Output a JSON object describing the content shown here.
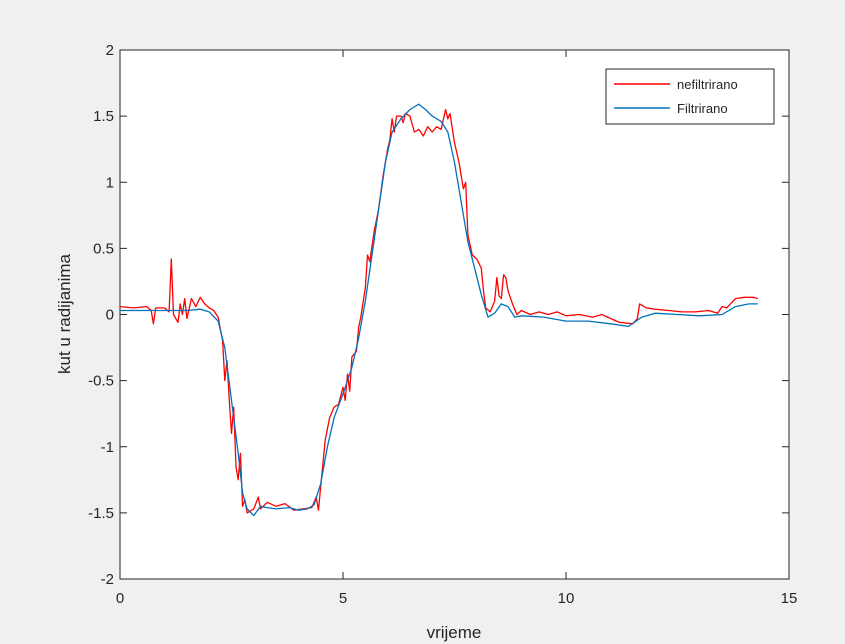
{
  "chart_data": {
    "type": "line",
    "xlabel": "vrijeme",
    "ylabel": "kut u radijanima",
    "xlim": [
      0,
      15
    ],
    "ylim": [
      -2,
      2
    ],
    "xticks": [
      0,
      5,
      10,
      15
    ],
    "xtick_labels": [
      "0",
      "5",
      "10",
      "15"
    ],
    "yticks": [
      -2,
      -1.5,
      -1,
      -0.5,
      0,
      0.5,
      1,
      1.5,
      2
    ],
    "ytick_labels": [
      "-2",
      "-1.5",
      "-1",
      "-0.5",
      "0",
      "0.5",
      "1",
      "1.5",
      "2"
    ],
    "grid": false,
    "legend_position": "top-right",
    "series": [
      {
        "name": "nefiltrirano",
        "color": "#ff0000",
        "points": [
          [
            0.0,
            0.06
          ],
          [
            0.3,
            0.05
          ],
          [
            0.6,
            0.06
          ],
          [
            0.7,
            0.03
          ],
          [
            0.75,
            -0.07
          ],
          [
            0.8,
            0.05
          ],
          [
            1.0,
            0.05
          ],
          [
            1.1,
            0.02
          ],
          [
            1.15,
            0.42
          ],
          [
            1.2,
            0.0
          ],
          [
            1.3,
            -0.06
          ],
          [
            1.35,
            0.08
          ],
          [
            1.4,
            0.0
          ],
          [
            1.45,
            0.12
          ],
          [
            1.5,
            -0.03
          ],
          [
            1.6,
            0.12
          ],
          [
            1.7,
            0.06
          ],
          [
            1.8,
            0.13
          ],
          [
            1.9,
            0.08
          ],
          [
            2.0,
            0.05
          ],
          [
            2.1,
            0.03
          ],
          [
            2.2,
            -0.02
          ],
          [
            2.3,
            -0.2
          ],
          [
            2.35,
            -0.5
          ],
          [
            2.4,
            -0.35
          ],
          [
            2.45,
            -0.65
          ],
          [
            2.5,
            -0.9
          ],
          [
            2.55,
            -0.7
          ],
          [
            2.6,
            -1.15
          ],
          [
            2.65,
            -1.25
          ],
          [
            2.7,
            -1.05
          ],
          [
            2.75,
            -1.45
          ],
          [
            2.8,
            -1.4
          ],
          [
            2.85,
            -1.5
          ],
          [
            3.0,
            -1.47
          ],
          [
            3.1,
            -1.38
          ],
          [
            3.15,
            -1.47
          ],
          [
            3.3,
            -1.42
          ],
          [
            3.5,
            -1.45
          ],
          [
            3.7,
            -1.43
          ],
          [
            3.9,
            -1.48
          ],
          [
            4.1,
            -1.47
          ],
          [
            4.3,
            -1.46
          ],
          [
            4.4,
            -1.38
          ],
          [
            4.45,
            -1.48
          ],
          [
            4.5,
            -1.3
          ],
          [
            4.6,
            -0.95
          ],
          [
            4.7,
            -0.78
          ],
          [
            4.8,
            -0.7
          ],
          [
            4.9,
            -0.68
          ],
          [
            5.0,
            -0.55
          ],
          [
            5.05,
            -0.65
          ],
          [
            5.1,
            -0.45
          ],
          [
            5.15,
            -0.58
          ],
          [
            5.2,
            -0.32
          ],
          [
            5.3,
            -0.28
          ],
          [
            5.35,
            -0.1
          ],
          [
            5.4,
            -0.02
          ],
          [
            5.5,
            0.2
          ],
          [
            5.55,
            0.45
          ],
          [
            5.6,
            0.4
          ],
          [
            5.7,
            0.63
          ],
          [
            5.8,
            0.8
          ],
          [
            5.9,
            1.05
          ],
          [
            6.0,
            1.25
          ],
          [
            6.05,
            1.32
          ],
          [
            6.1,
            1.48
          ],
          [
            6.15,
            1.38
          ],
          [
            6.2,
            1.5
          ],
          [
            6.3,
            1.5
          ],
          [
            6.35,
            1.45
          ],
          [
            6.4,
            1.52
          ],
          [
            6.5,
            1.5
          ],
          [
            6.6,
            1.38
          ],
          [
            6.7,
            1.4
          ],
          [
            6.8,
            1.35
          ],
          [
            6.9,
            1.42
          ],
          [
            7.0,
            1.38
          ],
          [
            7.1,
            1.42
          ],
          [
            7.2,
            1.4
          ],
          [
            7.3,
            1.55
          ],
          [
            7.35,
            1.48
          ],
          [
            7.4,
            1.52
          ],
          [
            7.5,
            1.3
          ],
          [
            7.6,
            1.15
          ],
          [
            7.7,
            0.95
          ],
          [
            7.75,
            1.0
          ],
          [
            7.8,
            0.6
          ],
          [
            7.9,
            0.45
          ],
          [
            8.0,
            0.42
          ],
          [
            8.1,
            0.35
          ],
          [
            8.15,
            0.18
          ],
          [
            8.2,
            0.05
          ],
          [
            8.3,
            0.02
          ],
          [
            8.4,
            0.1
          ],
          [
            8.45,
            0.28
          ],
          [
            8.5,
            0.14
          ],
          [
            8.55,
            0.12
          ],
          [
            8.6,
            0.3
          ],
          [
            8.65,
            0.28
          ],
          [
            8.7,
            0.18
          ],
          [
            8.8,
            0.08
          ],
          [
            8.9,
            0.0
          ],
          [
            9.0,
            0.03
          ],
          [
            9.2,
            0.0
          ],
          [
            9.4,
            0.02
          ],
          [
            9.6,
            0.0
          ],
          [
            9.8,
            0.02
          ],
          [
            10.0,
            -0.01
          ],
          [
            10.3,
            0.0
          ],
          [
            10.6,
            -0.02
          ],
          [
            10.8,
            0.0
          ],
          [
            11.0,
            -0.03
          ],
          [
            11.2,
            -0.06
          ],
          [
            11.5,
            -0.07
          ],
          [
            11.6,
            -0.03
          ],
          [
            11.65,
            0.08
          ],
          [
            11.8,
            0.05
          ],
          [
            12.0,
            0.04
          ],
          [
            12.3,
            0.03
          ],
          [
            12.6,
            0.02
          ],
          [
            12.9,
            0.02
          ],
          [
            13.2,
            0.03
          ],
          [
            13.4,
            0.01
          ],
          [
            13.5,
            0.06
          ],
          [
            13.6,
            0.05
          ],
          [
            13.8,
            0.12
          ],
          [
            14.0,
            0.13
          ],
          [
            14.2,
            0.13
          ],
          [
            14.3,
            0.12
          ]
        ]
      },
      {
        "name": "Filtrirano",
        "color": "#0072bd",
        "points": [
          [
            0.0,
            0.03
          ],
          [
            0.5,
            0.03
          ],
          [
            1.0,
            0.03
          ],
          [
            1.5,
            0.03
          ],
          [
            1.8,
            0.04
          ],
          [
            2.0,
            0.02
          ],
          [
            2.2,
            -0.05
          ],
          [
            2.35,
            -0.25
          ],
          [
            2.5,
            -0.65
          ],
          [
            2.65,
            -1.05
          ],
          [
            2.75,
            -1.35
          ],
          [
            2.85,
            -1.47
          ],
          [
            3.0,
            -1.52
          ],
          [
            3.15,
            -1.45
          ],
          [
            3.3,
            -1.46
          ],
          [
            3.5,
            -1.47
          ],
          [
            3.8,
            -1.46
          ],
          [
            4.0,
            -1.48
          ],
          [
            4.2,
            -1.47
          ],
          [
            4.35,
            -1.44
          ],
          [
            4.5,
            -1.28
          ],
          [
            4.65,
            -1.0
          ],
          [
            4.8,
            -0.78
          ],
          [
            5.0,
            -0.6
          ],
          [
            5.2,
            -0.4
          ],
          [
            5.35,
            -0.18
          ],
          [
            5.5,
            0.1
          ],
          [
            5.65,
            0.45
          ],
          [
            5.8,
            0.8
          ],
          [
            5.95,
            1.15
          ],
          [
            6.1,
            1.38
          ],
          [
            6.3,
            1.48
          ],
          [
            6.5,
            1.55
          ],
          [
            6.7,
            1.59
          ],
          [
            6.85,
            1.55
          ],
          [
            7.0,
            1.5
          ],
          [
            7.2,
            1.46
          ],
          [
            7.35,
            1.38
          ],
          [
            7.5,
            1.15
          ],
          [
            7.65,
            0.85
          ],
          [
            7.8,
            0.55
          ],
          [
            7.95,
            0.35
          ],
          [
            8.1,
            0.15
          ],
          [
            8.25,
            -0.02
          ],
          [
            8.4,
            0.01
          ],
          [
            8.55,
            0.08
          ],
          [
            8.7,
            0.06
          ],
          [
            8.85,
            -0.02
          ],
          [
            9.0,
            -0.01
          ],
          [
            9.5,
            -0.02
          ],
          [
            10.0,
            -0.05
          ],
          [
            10.5,
            -0.05
          ],
          [
            11.0,
            -0.07
          ],
          [
            11.4,
            -0.09
          ],
          [
            11.7,
            -0.02
          ],
          [
            12.0,
            0.01
          ],
          [
            12.5,
            0.0
          ],
          [
            13.0,
            -0.01
          ],
          [
            13.5,
            0.0
          ],
          [
            13.8,
            0.06
          ],
          [
            14.1,
            0.08
          ],
          [
            14.3,
            0.08
          ]
        ]
      }
    ]
  }
}
